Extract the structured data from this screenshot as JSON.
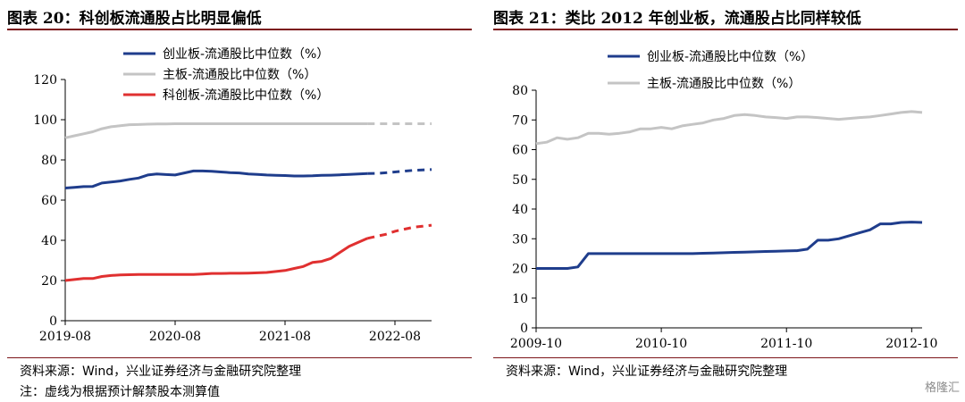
{
  "left": {
    "title": "图表 20：科创板流通股占比明显偏低",
    "source": "资料来源：Wind，兴业证券经济与金融研究院整理",
    "footnote": "注：虚线为根据预计解禁股本测算值"
  },
  "right": {
    "title": "图表 21：类比 2012 年创业板，流通股占比同样较低",
    "source": "资料来源：Wind，兴业证券经济与金融研究院整理"
  },
  "watermark": "格隆汇",
  "chart_data": [
    {
      "type": "line",
      "x": [
        0,
        1,
        2,
        3,
        4,
        5,
        6,
        7,
        8,
        9,
        10,
        11,
        12,
        13,
        14,
        15,
        16,
        17,
        18,
        19,
        20,
        21,
        22,
        23,
        24,
        25,
        26,
        27,
        28,
        29,
        30,
        31,
        32,
        33,
        34,
        35,
        36,
        37,
        38,
        39,
        40
      ],
      "xticks": [
        {
          "label": "2019-08",
          "x": 0
        },
        {
          "label": "2020-08",
          "x": 12
        },
        {
          "label": "2021-08",
          "x": 24
        },
        {
          "label": "2022-08",
          "x": 36
        }
      ],
      "xlim": [
        0,
        40
      ],
      "ylim": [
        0,
        120
      ],
      "yticks": [
        0,
        20,
        40,
        60,
        80,
        100,
        120
      ],
      "projection_from_x": 33,
      "legend_position": "top-left",
      "series": [
        {
          "name": "创业板-流通股比中位数（%）",
          "color": "#1f3d8c",
          "values": [
            66,
            66.3,
            66.7,
            66.8,
            68.5,
            69,
            69.5,
            70.3,
            71,
            72.5,
            73,
            72.7,
            72.5,
            73.5,
            74.5,
            74.5,
            74.3,
            74,
            73.7,
            73.5,
            73,
            72.8,
            72.5,
            72.3,
            72.2,
            72,
            72,
            72.1,
            72.3,
            72.4,
            72.6,
            72.8,
            73,
            73.2,
            73.3,
            73.6,
            74,
            74.4,
            74.8,
            75,
            75.2
          ]
        },
        {
          "name": "主板-流通股比中位数（%）",
          "color": "#c4c4c4",
          "values": [
            91,
            92,
            93,
            94,
            95.5,
            96.5,
            97,
            97.5,
            97.6,
            97.8,
            97.9,
            97.9,
            98,
            98,
            98,
            98,
            98,
            98,
            98,
            98,
            98,
            98,
            98,
            98,
            98,
            98,
            98,
            98,
            98,
            98,
            98,
            98,
            98,
            98,
            98,
            98,
            98,
            98,
            98,
            98,
            98
          ]
        },
        {
          "name": "科创板-流通股比中位数（%）",
          "color": "#e03030",
          "values": [
            20,
            20.5,
            21,
            21,
            22,
            22.5,
            22.8,
            22.9,
            23,
            23,
            23,
            23,
            23,
            23,
            23,
            23.2,
            23.5,
            23.5,
            23.6,
            23.6,
            23.7,
            23.8,
            24,
            24.5,
            25,
            26,
            27,
            29,
            29.5,
            31,
            34,
            37,
            39,
            41,
            42,
            43,
            44.5,
            45.5,
            46.5,
            47,
            47.5
          ]
        }
      ]
    },
    {
      "type": "line",
      "x": [
        0,
        1,
        2,
        3,
        4,
        5,
        6,
        7,
        8,
        9,
        10,
        11,
        12,
        13,
        14,
        15,
        16,
        17,
        18,
        19,
        20,
        21,
        22,
        23,
        24,
        25,
        26,
        27,
        28,
        29,
        30,
        31,
        32,
        33,
        34,
        35,
        36,
        37
      ],
      "xticks": [
        {
          "label": "2009-10",
          "x": 0
        },
        {
          "label": "2010-10",
          "x": 12
        },
        {
          "label": "2011-10",
          "x": 24
        },
        {
          "label": "2012-10",
          "x": 36
        }
      ],
      "xlim": [
        0,
        37
      ],
      "ylim": [
        0,
        80
      ],
      "yticks": [
        0,
        10,
        20,
        30,
        40,
        50,
        60,
        70,
        80
      ],
      "legend_position": "top-left",
      "series": [
        {
          "name": "创业板-流通股比中位数（%）",
          "color": "#1f3d8c",
          "values": [
            20,
            20,
            20,
            20,
            20.5,
            25,
            25,
            25,
            25,
            25,
            25,
            25,
            25,
            25,
            25,
            25,
            25.1,
            25.2,
            25.3,
            25.4,
            25.5,
            25.6,
            25.7,
            25.8,
            25.9,
            26,
            26.5,
            29.5,
            29.5,
            30,
            31,
            32,
            33,
            35,
            35,
            35.5,
            35.6,
            35.5
          ]
        },
        {
          "name": "主板-流通股比中位数（%）",
          "color": "#c4c4c4",
          "values": [
            62,
            62.5,
            64,
            63.5,
            64,
            65.5,
            65.5,
            65.2,
            65.5,
            66,
            67,
            67,
            67.5,
            67,
            68,
            68.5,
            69,
            70,
            70.5,
            71.5,
            71.8,
            71.5,
            71,
            70.8,
            70.5,
            71,
            71,
            70.8,
            70.5,
            70.2,
            70.5,
            70.8,
            71,
            71.5,
            72,
            72.5,
            72.8,
            72.5
          ]
        }
      ]
    }
  ]
}
